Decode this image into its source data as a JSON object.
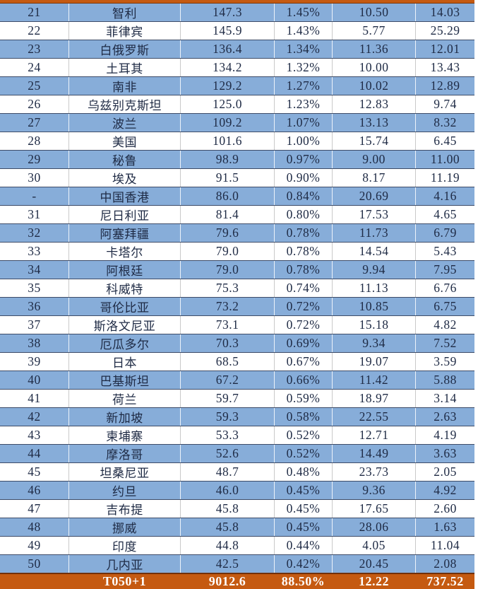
{
  "table": {
    "description_columns": [
      "rank",
      "country_name",
      "value",
      "share_percent",
      "metric_a",
      "metric_b"
    ],
    "rows": [
      [
        "21",
        "智利",
        "147.3",
        "1.45%",
        "10.50",
        "14.03"
      ],
      [
        "22",
        "菲律宾",
        "145.9",
        "1.43%",
        "5.77",
        "25.29"
      ],
      [
        "23",
        "白俄罗斯",
        "136.4",
        "1.34%",
        "11.36",
        "12.01"
      ],
      [
        "24",
        "土耳其",
        "134.2",
        "1.32%",
        "10.00",
        "13.43"
      ],
      [
        "25",
        "南非",
        "129.2",
        "1.27%",
        "10.02",
        "12.89"
      ],
      [
        "26",
        "乌兹别克斯坦",
        "125.0",
        "1.23%",
        "12.83",
        "9.74"
      ],
      [
        "27",
        "波兰",
        "109.2",
        "1.07%",
        "13.13",
        "8.32"
      ],
      [
        "28",
        "美国",
        "101.6",
        "1.00%",
        "15.74",
        "6.45"
      ],
      [
        "29",
        "秘鲁",
        "98.9",
        "0.97%",
        "9.00",
        "11.00"
      ],
      [
        "30",
        "埃及",
        "91.5",
        "0.90%",
        "8.17",
        "11.19"
      ],
      [
        "-",
        "中国香港",
        "86.0",
        "0.84%",
        "20.69",
        "4.16"
      ],
      [
        "31",
        "尼日利亚",
        "81.4",
        "0.80%",
        "17.53",
        "4.65"
      ],
      [
        "32",
        "阿塞拜疆",
        "79.6",
        "0.78%",
        "11.73",
        "6.79"
      ],
      [
        "33",
        "卡塔尔",
        "79.0",
        "0.78%",
        "14.54",
        "5.43"
      ],
      [
        "34",
        "阿根廷",
        "79.0",
        "0.78%",
        "9.94",
        "7.95"
      ],
      [
        "35",
        "科威特",
        "75.3",
        "0.74%",
        "11.13",
        "6.76"
      ],
      [
        "36",
        "哥伦比亚",
        "73.2",
        "0.72%",
        "10.85",
        "6.75"
      ],
      [
        "37",
        "斯洛文尼亚",
        "73.1",
        "0.72%",
        "15.18",
        "4.82"
      ],
      [
        "38",
        "厄瓜多尔",
        "70.3",
        "0.69%",
        "9.34",
        "7.52"
      ],
      [
        "39",
        "日本",
        "68.5",
        "0.67%",
        "19.07",
        "3.59"
      ],
      [
        "40",
        "巴基斯坦",
        "67.2",
        "0.66%",
        "11.42",
        "5.88"
      ],
      [
        "41",
        "荷兰",
        "59.7",
        "0.59%",
        "18.97",
        "3.14"
      ],
      [
        "42",
        "新加坡",
        "59.3",
        "0.58%",
        "22.55",
        "2.63"
      ],
      [
        "43",
        "柬埔寨",
        "53.3",
        "0.52%",
        "12.71",
        "4.19"
      ],
      [
        "44",
        "摩洛哥",
        "52.6",
        "0.52%",
        "14.49",
        "3.63"
      ],
      [
        "45",
        "坦桑尼亚",
        "48.7",
        "0.48%",
        "23.73",
        "2.05"
      ],
      [
        "46",
        "约旦",
        "46.0",
        "0.45%",
        "9.36",
        "4.92"
      ],
      [
        "47",
        "吉布提",
        "45.8",
        "0.45%",
        "17.65",
        "2.60"
      ],
      [
        "48",
        "挪威",
        "45.8",
        "0.45%",
        "28.06",
        "1.63"
      ],
      [
        "49",
        "印度",
        "44.8",
        "0.44%",
        "4.05",
        "11.04"
      ],
      [
        "50",
        "几内亚",
        "42.5",
        "0.42%",
        "20.45",
        "2.08"
      ]
    ],
    "total_row": [
      "",
      "T050+1",
      "9012.6",
      "88.50%",
      "12.22",
      "737.52"
    ],
    "colors": {
      "row_blue": "#87ADD9",
      "row_white": "#FFFFFF",
      "total_orange": "#C55A11",
      "row_divider": "#3E4C68",
      "text": "#1E2A44",
      "total_text": "#FFFFFF"
    }
  }
}
